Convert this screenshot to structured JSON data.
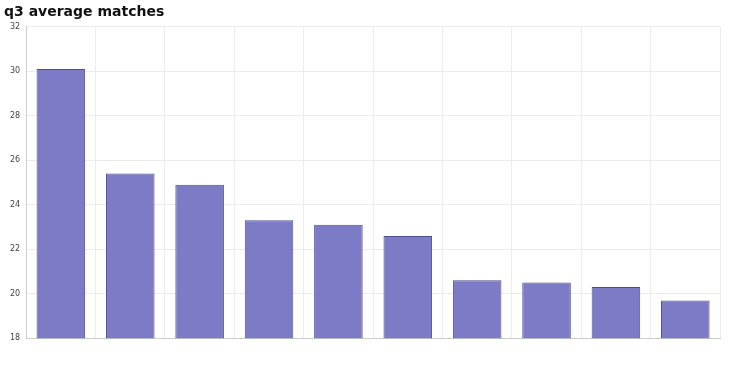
{
  "chart_data": {
    "type": "bar",
    "title": "q3 average matches",
    "categories": [
      null,
      null,
      null,
      null,
      null,
      null,
      null,
      null,
      null,
      null
    ],
    "values": [
      30.1,
      25.4,
      24.9,
      23.3,
      23.1,
      22.6,
      20.6,
      20.5,
      20.3,
      19.7
    ],
    "color": "#7b7bc6",
    "ylim": [
      18,
      32
    ],
    "yticks": [
      18,
      20,
      22,
      24,
      26,
      28,
      30,
      32
    ],
    "grid": true
  }
}
